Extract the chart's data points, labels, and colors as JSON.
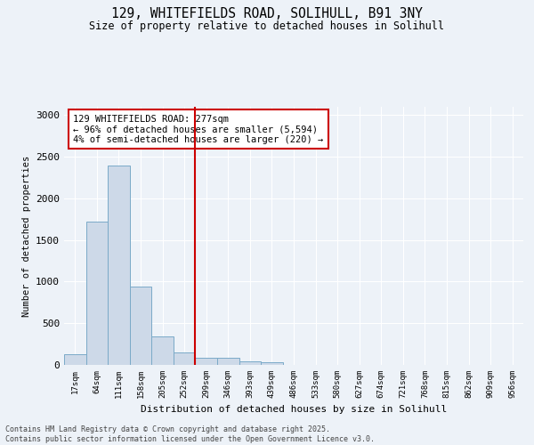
{
  "title_line1": "129, WHITEFIELDS ROAD, SOLIHULL, B91 3NY",
  "title_line2": "Size of property relative to detached houses in Solihull",
  "xlabel": "Distribution of detached houses by size in Solihull",
  "ylabel": "Number of detached properties",
  "categories": [
    "17sqm",
    "64sqm",
    "111sqm",
    "158sqm",
    "205sqm",
    "252sqm",
    "299sqm",
    "346sqm",
    "393sqm",
    "439sqm",
    "486sqm",
    "533sqm",
    "580sqm",
    "627sqm",
    "674sqm",
    "721sqm",
    "768sqm",
    "815sqm",
    "862sqm",
    "909sqm",
    "956sqm"
  ],
  "values": [
    130,
    1720,
    2390,
    940,
    340,
    150,
    85,
    85,
    40,
    30,
    0,
    0,
    0,
    0,
    0,
    0,
    0,
    0,
    0,
    0,
    0
  ],
  "bar_color": "#cdd9e8",
  "bar_edge_color": "#7aaac8",
  "vline_x": 6.0,
  "vline_color": "#cc0000",
  "annotation_text": "129 WHITEFIELDS ROAD: 277sqm\n← 96% of detached houses are smaller (5,594)\n4% of semi-detached houses are larger (220) →",
  "annotation_box_color": "#ffffff",
  "annotation_box_edge": "#cc0000",
  "ylim": [
    0,
    3100
  ],
  "yticks": [
    0,
    500,
    1000,
    1500,
    2000,
    2500,
    3000
  ],
  "background_color": "#edf2f8",
  "grid_color": "#ffffff",
  "footer_line1": "Contains HM Land Registry data © Crown copyright and database right 2025.",
  "footer_line2": "Contains public sector information licensed under the Open Government Licence v3.0."
}
